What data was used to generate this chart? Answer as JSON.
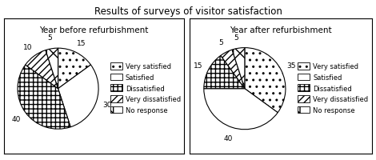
{
  "title": "Results of surveys of visitor satisfaction",
  "left_title": "Year before refurbishment",
  "right_title": "Year after refurbishment",
  "left_values": [
    15,
    30,
    40,
    10,
    5
  ],
  "right_values": [
    35,
    40,
    15,
    5,
    5
  ],
  "left_labels": [
    "15",
    "30",
    "40",
    "10",
    "5"
  ],
  "right_labels": [
    "35",
    "40",
    "15",
    "5",
    "5"
  ],
  "legend_labels": [
    "Very satisfied",
    "Satisfied",
    "Dissatisfied",
    "Very dissatisfied",
    "No response"
  ],
  "hatch_list": [
    "..",
    "====",
    "+++",
    "////",
    "x|"
  ],
  "edge_color": "black",
  "background": "white",
  "title_fontsize": 8.5,
  "subtitle_fontsize": 7.5,
  "label_fontsize": 6.5,
  "legend_fontsize": 6.0
}
